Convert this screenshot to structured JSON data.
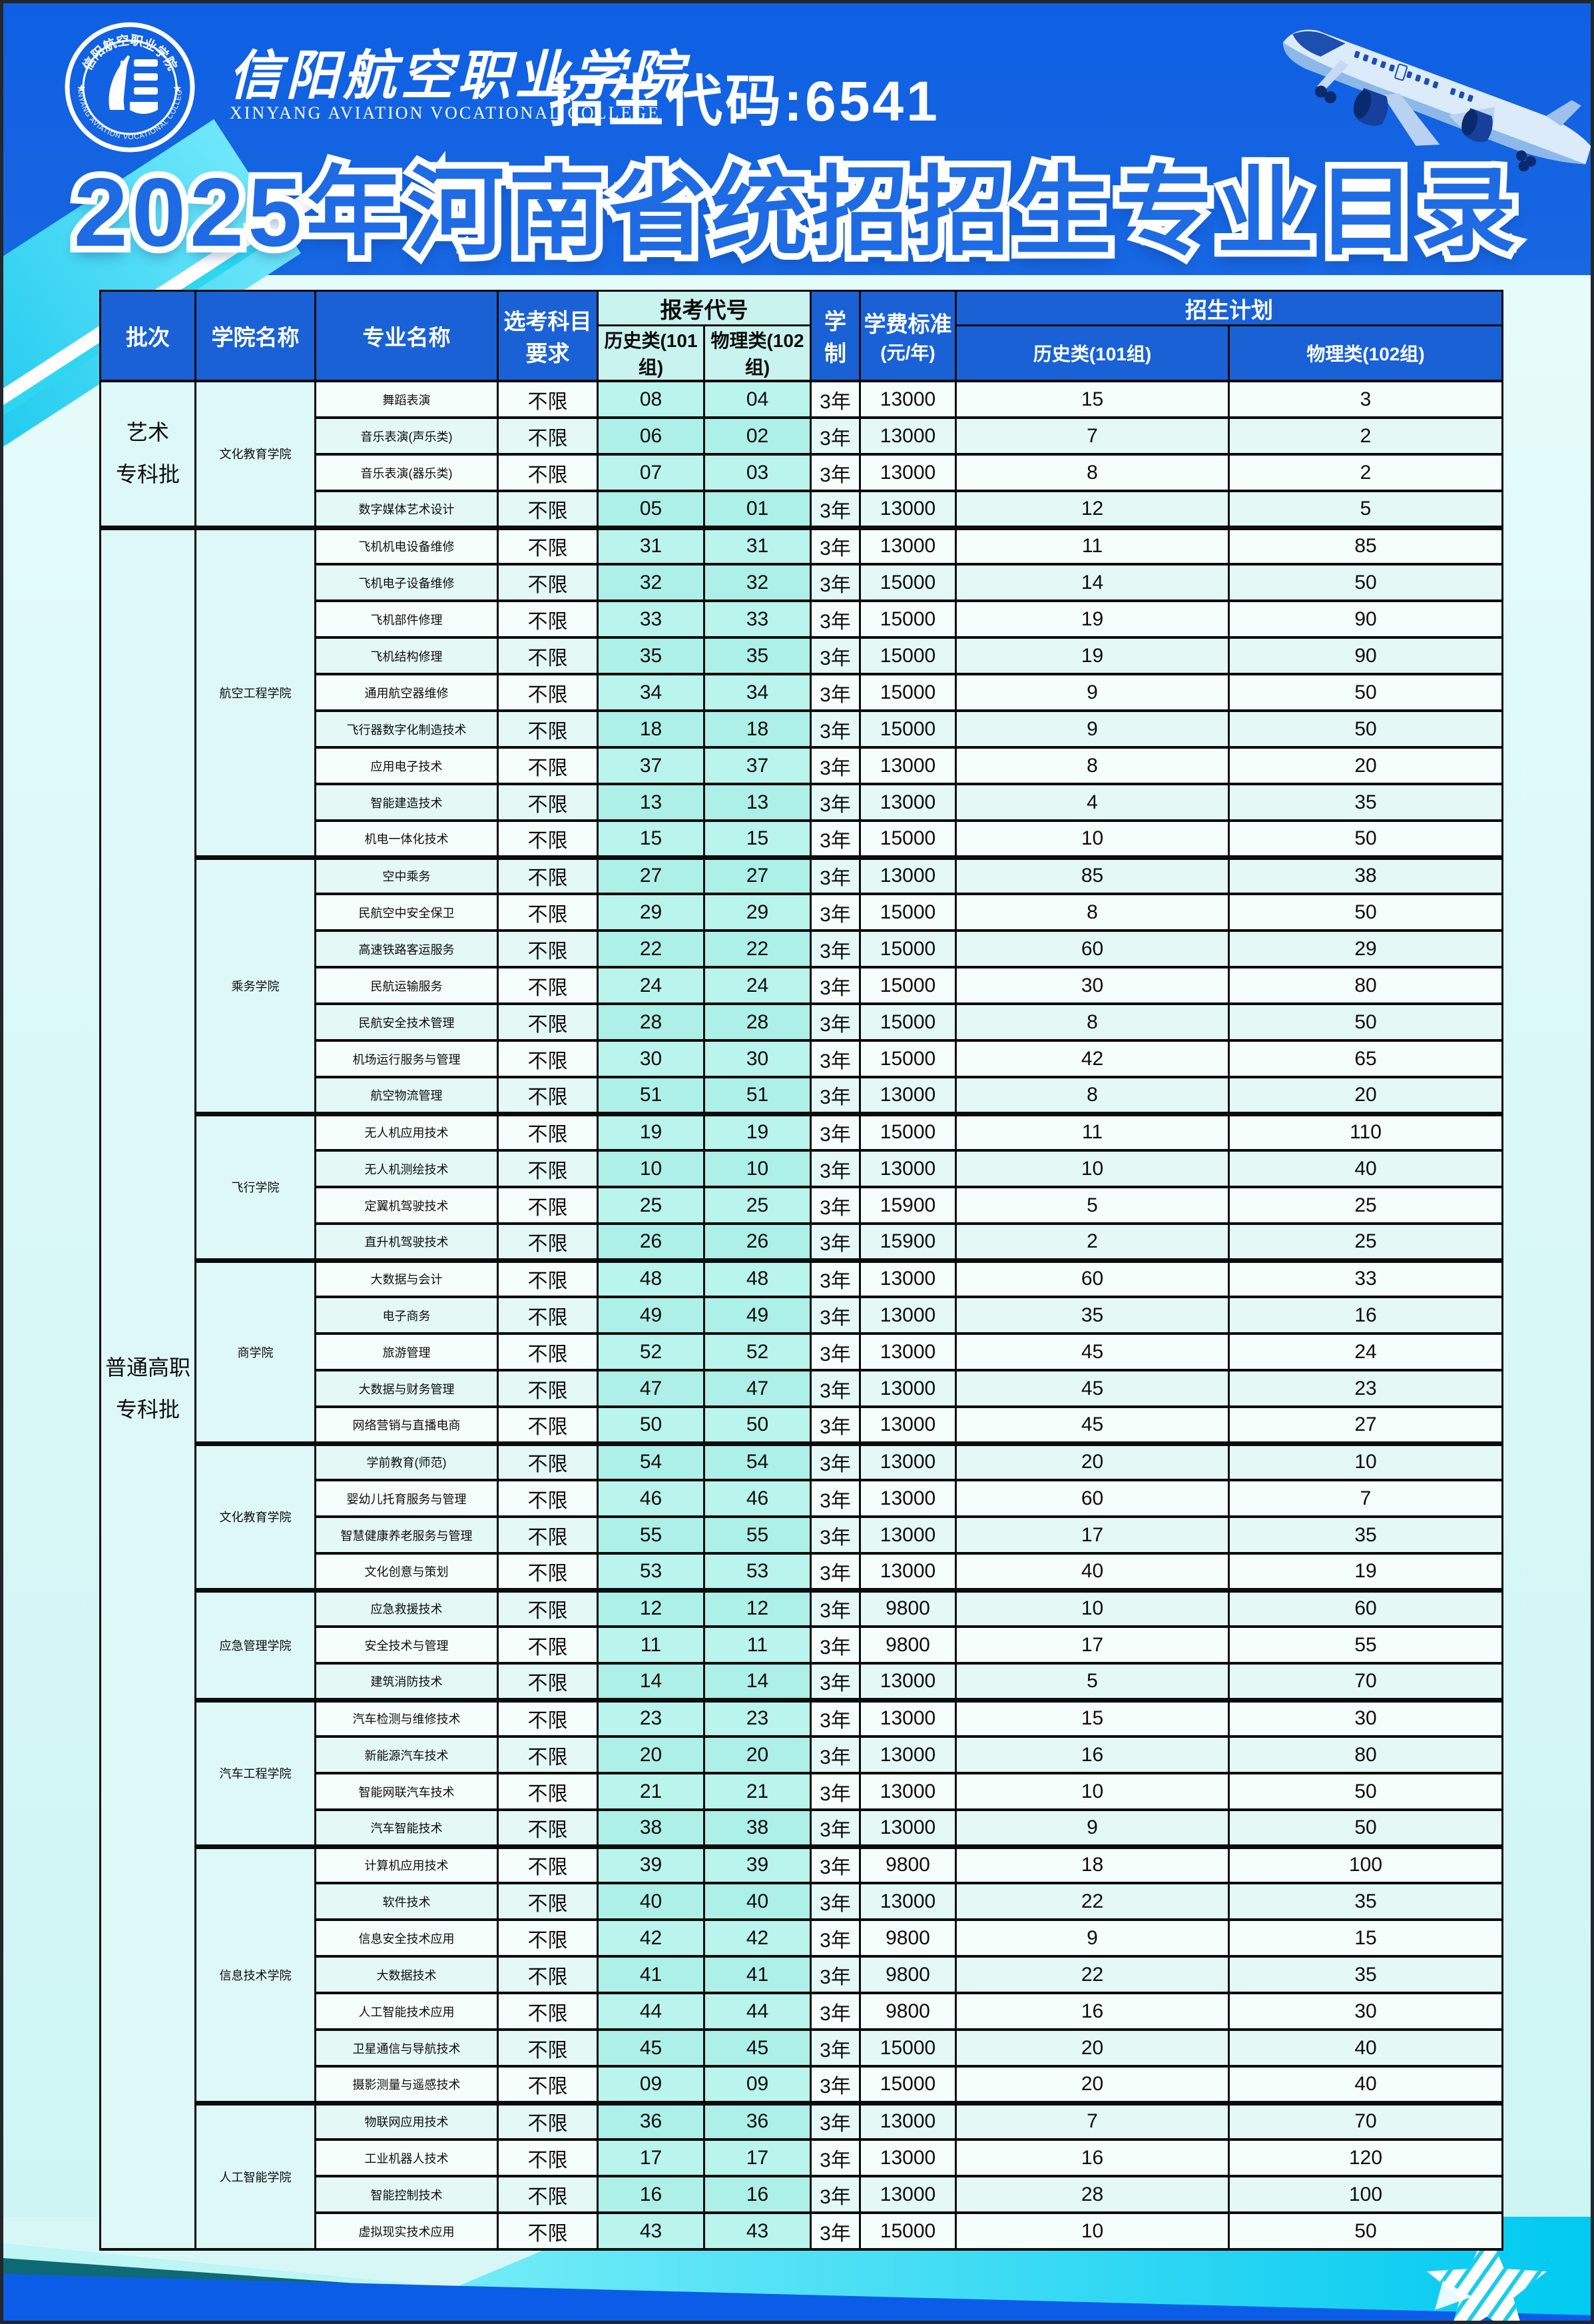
{
  "page": {
    "admission_code": "招生代码:6541",
    "title": "2025年河南省统招招生专业目录",
    "college_name_zh": "信阳航空职业学院",
    "college_name_en": "XINYANG AVIATION VOCATIONAL COLLEGE"
  },
  "colors": {
    "header_blue": "#1563e2",
    "table_header_blue": "#1a61d6",
    "code_cell_cyan": "#b2f2ea",
    "code_header_cyan": "#c8f3ee",
    "accent_cyan": "#25d2f2",
    "footer_blue": "#0b5de8",
    "footer_teal": "#0e6a74",
    "title_blue": "#1e6be4"
  },
  "table": {
    "headers": {
      "batch": "批次",
      "college": "学院名称",
      "major": "专业名称",
      "subjects": "选考科目要求",
      "code_group": "报考代号",
      "code_hist": "历史类(101组)",
      "code_phys": "物理类(102组)",
      "duration": "学制",
      "tuition_line1": "学费标准",
      "tuition_line2": "(元/年)",
      "plan_group": "招生计划",
      "plan_hist": "历史类(101组)",
      "plan_phys": "物理类(102组)"
    },
    "batches": [
      {
        "name_lines": [
          "艺术",
          "专科批"
        ],
        "colleges": [
          {
            "name": "文化教育学院",
            "majors": [
              {
                "name": "舞蹈表演",
                "subjects": "不限",
                "code_hist": "08",
                "code_phys": "04",
                "duration": "3年",
                "tuition": "13000",
                "plan_hist": "15",
                "plan_phys": "3"
              },
              {
                "name": "音乐表演(声乐类)",
                "subjects": "不限",
                "code_hist": "06",
                "code_phys": "02",
                "duration": "3年",
                "tuition": "13000",
                "plan_hist": "7",
                "plan_phys": "2"
              },
              {
                "name": "音乐表演(器乐类)",
                "subjects": "不限",
                "code_hist": "07",
                "code_phys": "03",
                "duration": "3年",
                "tuition": "13000",
                "plan_hist": "8",
                "plan_phys": "2"
              },
              {
                "name": "数字媒体艺术设计",
                "subjects": "不限",
                "code_hist": "05",
                "code_phys": "01",
                "duration": "3年",
                "tuition": "13000",
                "plan_hist": "12",
                "plan_phys": "5"
              }
            ]
          }
        ]
      },
      {
        "name_lines": [
          "普通高职",
          "专科批"
        ],
        "colleges": [
          {
            "name": "航空工程学院",
            "majors": [
              {
                "name": "飞机机电设备维修",
                "subjects": "不限",
                "code_hist": "31",
                "code_phys": "31",
                "duration": "3年",
                "tuition": "13000",
                "plan_hist": "11",
                "plan_phys": "85"
              },
              {
                "name": "飞机电子设备维修",
                "subjects": "不限",
                "code_hist": "32",
                "code_phys": "32",
                "duration": "3年",
                "tuition": "15000",
                "plan_hist": "14",
                "plan_phys": "50"
              },
              {
                "name": "飞机部件修理",
                "subjects": "不限",
                "code_hist": "33",
                "code_phys": "33",
                "duration": "3年",
                "tuition": "15000",
                "plan_hist": "19",
                "plan_phys": "90"
              },
              {
                "name": "飞机结构修理",
                "subjects": "不限",
                "code_hist": "35",
                "code_phys": "35",
                "duration": "3年",
                "tuition": "15000",
                "plan_hist": "19",
                "plan_phys": "90"
              },
              {
                "name": "通用航空器维修",
                "subjects": "不限",
                "code_hist": "34",
                "code_phys": "34",
                "duration": "3年",
                "tuition": "15000",
                "plan_hist": "9",
                "plan_phys": "50"
              },
              {
                "name": "飞行器数字化制造技术",
                "subjects": "不限",
                "code_hist": "18",
                "code_phys": "18",
                "duration": "3年",
                "tuition": "15000",
                "plan_hist": "9",
                "plan_phys": "50"
              },
              {
                "name": "应用电子技术",
                "subjects": "不限",
                "code_hist": "37",
                "code_phys": "37",
                "duration": "3年",
                "tuition": "13000",
                "plan_hist": "8",
                "plan_phys": "20"
              },
              {
                "name": "智能建造技术",
                "subjects": "不限",
                "code_hist": "13",
                "code_phys": "13",
                "duration": "3年",
                "tuition": "13000",
                "plan_hist": "4",
                "plan_phys": "35"
              },
              {
                "name": "机电一体化技术",
                "subjects": "不限",
                "code_hist": "15",
                "code_phys": "15",
                "duration": "3年",
                "tuition": "15000",
                "plan_hist": "10",
                "plan_phys": "50"
              }
            ]
          },
          {
            "name": "乘务学院",
            "majors": [
              {
                "name": "空中乘务",
                "subjects": "不限",
                "code_hist": "27",
                "code_phys": "27",
                "duration": "3年",
                "tuition": "13000",
                "plan_hist": "85",
                "plan_phys": "38"
              },
              {
                "name": "民航空中安全保卫",
                "subjects": "不限",
                "code_hist": "29",
                "code_phys": "29",
                "duration": "3年",
                "tuition": "15000",
                "plan_hist": "8",
                "plan_phys": "50"
              },
              {
                "name": "高速铁路客运服务",
                "subjects": "不限",
                "code_hist": "22",
                "code_phys": "22",
                "duration": "3年",
                "tuition": "15000",
                "plan_hist": "60",
                "plan_phys": "29"
              },
              {
                "name": "民航运输服务",
                "subjects": "不限",
                "code_hist": "24",
                "code_phys": "24",
                "duration": "3年",
                "tuition": "15000",
                "plan_hist": "30",
                "plan_phys": "80"
              },
              {
                "name": "民航安全技术管理",
                "subjects": "不限",
                "code_hist": "28",
                "code_phys": "28",
                "duration": "3年",
                "tuition": "15000",
                "plan_hist": "8",
                "plan_phys": "50"
              },
              {
                "name": "机场运行服务与管理",
                "subjects": "不限",
                "code_hist": "30",
                "code_phys": "30",
                "duration": "3年",
                "tuition": "15000",
                "plan_hist": "42",
                "plan_phys": "65"
              },
              {
                "name": "航空物流管理",
                "subjects": "不限",
                "code_hist": "51",
                "code_phys": "51",
                "duration": "3年",
                "tuition": "13000",
                "plan_hist": "8",
                "plan_phys": "20"
              }
            ]
          },
          {
            "name": "飞行学院",
            "majors": [
              {
                "name": "无人机应用技术",
                "subjects": "不限",
                "code_hist": "19",
                "code_phys": "19",
                "duration": "3年",
                "tuition": "15000",
                "plan_hist": "11",
                "plan_phys": "110"
              },
              {
                "name": "无人机测绘技术",
                "subjects": "不限",
                "code_hist": "10",
                "code_phys": "10",
                "duration": "3年",
                "tuition": "13000",
                "plan_hist": "10",
                "plan_phys": "40"
              },
              {
                "name": "定翼机驾驶技术",
                "subjects": "不限",
                "code_hist": "25",
                "code_phys": "25",
                "duration": "3年",
                "tuition": "15900",
                "plan_hist": "5",
                "plan_phys": "25"
              },
              {
                "name": "直升机驾驶技术",
                "subjects": "不限",
                "code_hist": "26",
                "code_phys": "26",
                "duration": "3年",
                "tuition": "15900",
                "plan_hist": "2",
                "plan_phys": "25"
              }
            ]
          },
          {
            "name": "商学院",
            "majors": [
              {
                "name": "大数据与会计",
                "subjects": "不限",
                "code_hist": "48",
                "code_phys": "48",
                "duration": "3年",
                "tuition": "13000",
                "plan_hist": "60",
                "plan_phys": "33"
              },
              {
                "name": "电子商务",
                "subjects": "不限",
                "code_hist": "49",
                "code_phys": "49",
                "duration": "3年",
                "tuition": "13000",
                "plan_hist": "35",
                "plan_phys": "16"
              },
              {
                "name": "旅游管理",
                "subjects": "不限",
                "code_hist": "52",
                "code_phys": "52",
                "duration": "3年",
                "tuition": "13000",
                "plan_hist": "45",
                "plan_phys": "24"
              },
              {
                "name": "大数据与财务管理",
                "subjects": "不限",
                "code_hist": "47",
                "code_phys": "47",
                "duration": "3年",
                "tuition": "13000",
                "plan_hist": "45",
                "plan_phys": "23"
              },
              {
                "name": "网络营销与直播电商",
                "subjects": "不限",
                "code_hist": "50",
                "code_phys": "50",
                "duration": "3年",
                "tuition": "13000",
                "plan_hist": "45",
                "plan_phys": "27"
              }
            ]
          },
          {
            "name": "文化教育学院",
            "majors": [
              {
                "name": "学前教育(师范)",
                "subjects": "不限",
                "code_hist": "54",
                "code_phys": "54",
                "duration": "3年",
                "tuition": "13000",
                "plan_hist": "20",
                "plan_phys": "10"
              },
              {
                "name": "婴幼儿托育服务与管理",
                "subjects": "不限",
                "code_hist": "46",
                "code_phys": "46",
                "duration": "3年",
                "tuition": "13000",
                "plan_hist": "60",
                "plan_phys": "7"
              },
              {
                "name": "智慧健康养老服务与管理",
                "subjects": "不限",
                "code_hist": "55",
                "code_phys": "55",
                "duration": "3年",
                "tuition": "13000",
                "plan_hist": "17",
                "plan_phys": "35"
              },
              {
                "name": "文化创意与策划",
                "subjects": "不限",
                "code_hist": "53",
                "code_phys": "53",
                "duration": "3年",
                "tuition": "13000",
                "plan_hist": "40",
                "plan_phys": "19"
              }
            ]
          },
          {
            "name": "应急管理学院",
            "majors": [
              {
                "name": "应急救援技术",
                "subjects": "不限",
                "code_hist": "12",
                "code_phys": "12",
                "duration": "3年",
                "tuition": "9800",
                "plan_hist": "10",
                "plan_phys": "60"
              },
              {
                "name": "安全技术与管理",
                "subjects": "不限",
                "code_hist": "11",
                "code_phys": "11",
                "duration": "3年",
                "tuition": "9800",
                "plan_hist": "17",
                "plan_phys": "55"
              },
              {
                "name": "建筑消防技术",
                "subjects": "不限",
                "code_hist": "14",
                "code_phys": "14",
                "duration": "3年",
                "tuition": "13000",
                "plan_hist": "5",
                "plan_phys": "70"
              }
            ]
          },
          {
            "name": "汽车工程学院",
            "majors": [
              {
                "name": "汽车检测与维修技术",
                "subjects": "不限",
                "code_hist": "23",
                "code_phys": "23",
                "duration": "3年",
                "tuition": "13000",
                "plan_hist": "15",
                "plan_phys": "30"
              },
              {
                "name": "新能源汽车技术",
                "subjects": "不限",
                "code_hist": "20",
                "code_phys": "20",
                "duration": "3年",
                "tuition": "13000",
                "plan_hist": "16",
                "plan_phys": "80"
              },
              {
                "name": "智能网联汽车技术",
                "subjects": "不限",
                "code_hist": "21",
                "code_phys": "21",
                "duration": "3年",
                "tuition": "13000",
                "plan_hist": "10",
                "plan_phys": "50"
              },
              {
                "name": "汽车智能技术",
                "subjects": "不限",
                "code_hist": "38",
                "code_phys": "38",
                "duration": "3年",
                "tuition": "13000",
                "plan_hist": "9",
                "plan_phys": "50"
              }
            ]
          },
          {
            "name": "信息技术学院",
            "majors": [
              {
                "name": "计算机应用技术",
                "subjects": "不限",
                "code_hist": "39",
                "code_phys": "39",
                "duration": "3年",
                "tuition": "9800",
                "plan_hist": "18",
                "plan_phys": "100"
              },
              {
                "name": "软件技术",
                "subjects": "不限",
                "code_hist": "40",
                "code_phys": "40",
                "duration": "3年",
                "tuition": "13000",
                "plan_hist": "22",
                "plan_phys": "35"
              },
              {
                "name": "信息安全技术应用",
                "subjects": "不限",
                "code_hist": "42",
                "code_phys": "42",
                "duration": "3年",
                "tuition": "9800",
                "plan_hist": "9",
                "plan_phys": "15"
              },
              {
                "name": "大数据技术",
                "subjects": "不限",
                "code_hist": "41",
                "code_phys": "41",
                "duration": "3年",
                "tuition": "9800",
                "plan_hist": "22",
                "plan_phys": "35"
              },
              {
                "name": "人工智能技术应用",
                "subjects": "不限",
                "code_hist": "44",
                "code_phys": "44",
                "duration": "3年",
                "tuition": "9800",
                "plan_hist": "16",
                "plan_phys": "30"
              },
              {
                "name": "卫星通信与导航技术",
                "subjects": "不限",
                "code_hist": "45",
                "code_phys": "45",
                "duration": "3年",
                "tuition": "15000",
                "plan_hist": "20",
                "plan_phys": "40"
              },
              {
                "name": "摄影测量与遥感技术",
                "subjects": "不限",
                "code_hist": "09",
                "code_phys": "09",
                "duration": "3年",
                "tuition": "15000",
                "plan_hist": "20",
                "plan_phys": "40"
              }
            ]
          },
          {
            "name": "人工智能学院",
            "majors": [
              {
                "name": "物联网应用技术",
                "subjects": "不限",
                "code_hist": "36",
                "code_phys": "36",
                "duration": "3年",
                "tuition": "13000",
                "plan_hist": "7",
                "plan_phys": "70"
              },
              {
                "name": "工业机器人技术",
                "subjects": "不限",
                "code_hist": "17",
                "code_phys": "17",
                "duration": "3年",
                "tuition": "13000",
                "plan_hist": "16",
                "plan_phys": "120"
              },
              {
                "name": "智能控制技术",
                "subjects": "不限",
                "code_hist": "16",
                "code_phys": "16",
                "duration": "3年",
                "tuition": "13000",
                "plan_hist": "28",
                "plan_phys": "100"
              },
              {
                "name": "虚拟现实技术应用",
                "subjects": "不限",
                "code_hist": "43",
                "code_phys": "43",
                "duration": "3年",
                "tuition": "15000",
                "plan_hist": "10",
                "plan_phys": "50"
              }
            ]
          }
        ]
      }
    ]
  }
}
